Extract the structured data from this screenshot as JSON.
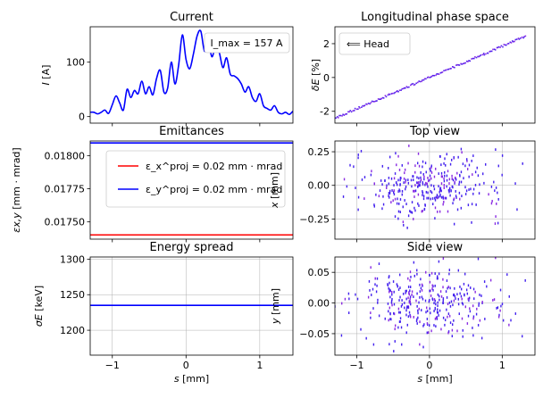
{
  "chart_data": [
    {
      "id": "current",
      "type": "line",
      "title": "Current",
      "ylabel": "I [A]",
      "xlabel": "",
      "xlim": [
        -1.3,
        1.45
      ],
      "ylim": [
        -12,
        165
      ],
      "yticks": [
        0,
        100
      ],
      "xticks": [
        -1,
        0,
        1
      ],
      "grid": false,
      "annotation": "I_max = 157 A",
      "series": [
        {
          "color": "#0000ff",
          "x": [
            -1.3,
            -1.25,
            -1.2,
            -1.15,
            -1.1,
            -1.05,
            -1.0,
            -0.95,
            -0.9,
            -0.85,
            -0.8,
            -0.75,
            -0.7,
            -0.65,
            -0.6,
            -0.55,
            -0.5,
            -0.45,
            -0.4,
            -0.35,
            -0.3,
            -0.25,
            -0.2,
            -0.15,
            -0.1,
            -0.05,
            0.0,
            0.05,
            0.1,
            0.15,
            0.2,
            0.25,
            0.3,
            0.35,
            0.4,
            0.45,
            0.5,
            0.55,
            0.6,
            0.65,
            0.7,
            0.75,
            0.8,
            0.85,
            0.9,
            0.95,
            1.0,
            1.05,
            1.1,
            1.15,
            1.2,
            1.25,
            1.3,
            1.35,
            1.4,
            1.45
          ],
          "y": [
            8,
            8,
            5,
            8,
            12,
            6,
            22,
            38,
            25,
            12,
            50,
            35,
            48,
            42,
            65,
            42,
            55,
            40,
            70,
            85,
            45,
            52,
            100,
            60,
            95,
            150,
            105,
            88,
            115,
            148,
            157,
            120,
            138,
            110,
            128,
            118,
            90,
            108,
            78,
            75,
            70,
            60,
            45,
            55,
            35,
            28,
            42,
            20,
            15,
            12,
            20,
            8,
            5,
            8,
            4,
            10
          ]
        }
      ]
    },
    {
      "id": "longitudinal",
      "type": "scatter",
      "title": "Longitudinal phase space",
      "ylabel": "δE [%]",
      "xlabel": "",
      "xlim": [
        -1.3,
        1.45
      ],
      "ylim": [
        -2.7,
        3.0
      ],
      "yticks": [
        -2,
        0,
        2
      ],
      "xticks": [
        -1,
        0,
        1
      ],
      "grid": false,
      "legend": "⟸ Head",
      "legend_position": "top-left",
      "relation": {
        "slope": 1.85,
        "intercept": 0.0,
        "x_from": -1.3,
        "x_to": 1.32
      }
    },
    {
      "id": "emittances",
      "type": "line",
      "title": "Emittances",
      "ylabel": "εx,y [mm · mrad]",
      "xlabel": "",
      "xlim": [
        -1.3,
        1.45
      ],
      "ylim": [
        0.01737,
        0.01811
      ],
      "yticks": [
        0.0175,
        0.01775,
        0.018
      ],
      "ytick_labels": [
        "0.01750",
        "0.01775",
        "0.01800"
      ],
      "xticks": [
        -1,
        0,
        1
      ],
      "grid": false,
      "legend_position": "upper-center",
      "series": [
        {
          "name": "ε_x^proj = 0.02 mm · mrad",
          "color": "#ff0000",
          "y": 0.017402
        },
        {
          "name": "ε_y^proj = 0.02 mm · mrad",
          "color": "#0000ff",
          "y": 0.018095
        }
      ]
    },
    {
      "id": "topview",
      "type": "scatter",
      "title": "Top view",
      "ylabel": "x [mm]",
      "xlabel": "",
      "xlim": [
        -1.3,
        1.45
      ],
      "ylim": [
        -0.4,
        0.33
      ],
      "yticks": [
        -0.25,
        0.0,
        0.25
      ],
      "ytick_labels": [
        "−0.25",
        "0.00",
        "0.25"
      ],
      "xticks": [
        -1,
        0,
        1
      ],
      "grid": true,
      "spread": {
        "x_sd": 0.52,
        "y_sd": 0.12,
        "count": 340,
        "seed": 7
      }
    },
    {
      "id": "energy",
      "type": "line",
      "title": "Energy spread",
      "ylabel": "σE [keV]",
      "xlabel": "s [mm]",
      "xlim": [
        -1.3,
        1.45
      ],
      "ylim": [
        1165,
        1303
      ],
      "yticks": [
        1200,
        1250,
        1300
      ],
      "xticks": [
        -1,
        0,
        1
      ],
      "xtick_labels": [
        "−1",
        "0",
        "1"
      ],
      "grid": true,
      "series": [
        {
          "color": "#0000ff",
          "y": 1235
        }
      ]
    },
    {
      "id": "sideview",
      "type": "scatter",
      "title": "Side view",
      "ylabel": "y [mm]",
      "xlabel": "s [mm]",
      "xlim": [
        -1.3,
        1.45
      ],
      "ylim": [
        -0.085,
        0.075
      ],
      "yticks": [
        -0.05,
        0.0,
        0.05
      ],
      "ytick_labels": [
        "−0.05",
        "0.00",
        "0.05"
      ],
      "xticks": [
        -1,
        0,
        1
      ],
      "xtick_labels": [
        "−1",
        "0",
        "1"
      ],
      "grid": true,
      "spread": {
        "x_sd": 0.52,
        "y_sd": 0.03,
        "count": 340,
        "seed": 13
      }
    }
  ]
}
